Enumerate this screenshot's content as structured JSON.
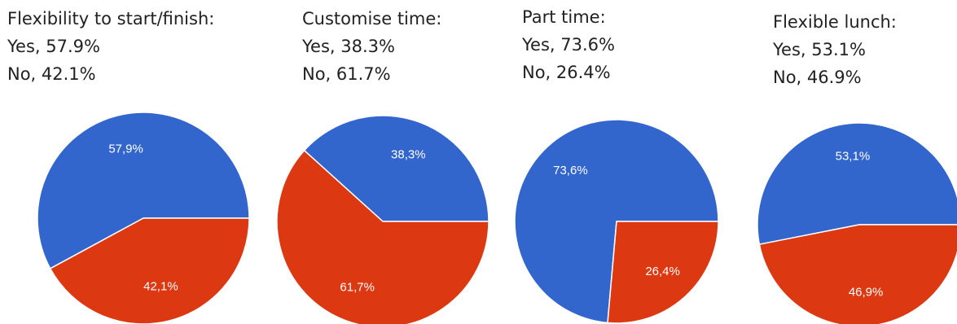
{
  "colors": {
    "yes": "#3366cc",
    "no": "#dc3912",
    "separator": "#ffffff"
  },
  "captions": [
    {
      "title": "Flexibility to start/finish:",
      "yes_text": "Yes, 57.9%",
      "no_text": "No, 42.1%"
    },
    {
      "title": "Customise time:",
      "yes_text": "Yes, 38.3%",
      "no_text": "No, 61.7%"
    },
    {
      "title": "Part time:",
      "yes_text": "Yes, 73.6%",
      "no_text": "No, 26.4%"
    },
    {
      "title": "Flexible lunch:",
      "yes_text": "Yes, 53.1%",
      "no_text": "No, 46.9%"
    }
  ],
  "chart_data": [
    {
      "type": "pie",
      "title": "Flexibility to start/finish:",
      "categories": [
        "Yes",
        "No"
      ],
      "values": [
        57.9,
        42.1
      ],
      "labels": [
        "57,9%",
        "42,1%"
      ],
      "colors": [
        "#3366cc",
        "#dc3912"
      ]
    },
    {
      "type": "pie",
      "title": "Customise time:",
      "categories": [
        "Yes",
        "No"
      ],
      "values": [
        38.3,
        61.7
      ],
      "labels": [
        "38,3%",
        "61,7%"
      ],
      "colors": [
        "#3366cc",
        "#dc3912"
      ]
    },
    {
      "type": "pie",
      "title": "Part time:",
      "categories": [
        "Yes",
        "No"
      ],
      "values": [
        73.6,
        26.4
      ],
      "labels": [
        "73,6%",
        "26,4%"
      ],
      "colors": [
        "#3366cc",
        "#dc3912"
      ]
    },
    {
      "type": "pie",
      "title": "Flexible lunch:",
      "categories": [
        "Yes",
        "No"
      ],
      "values": [
        53.1,
        46.9
      ],
      "labels": [
        "53,1%",
        "46,9%"
      ],
      "colors": [
        "#3366cc",
        "#dc3912"
      ]
    }
  ]
}
